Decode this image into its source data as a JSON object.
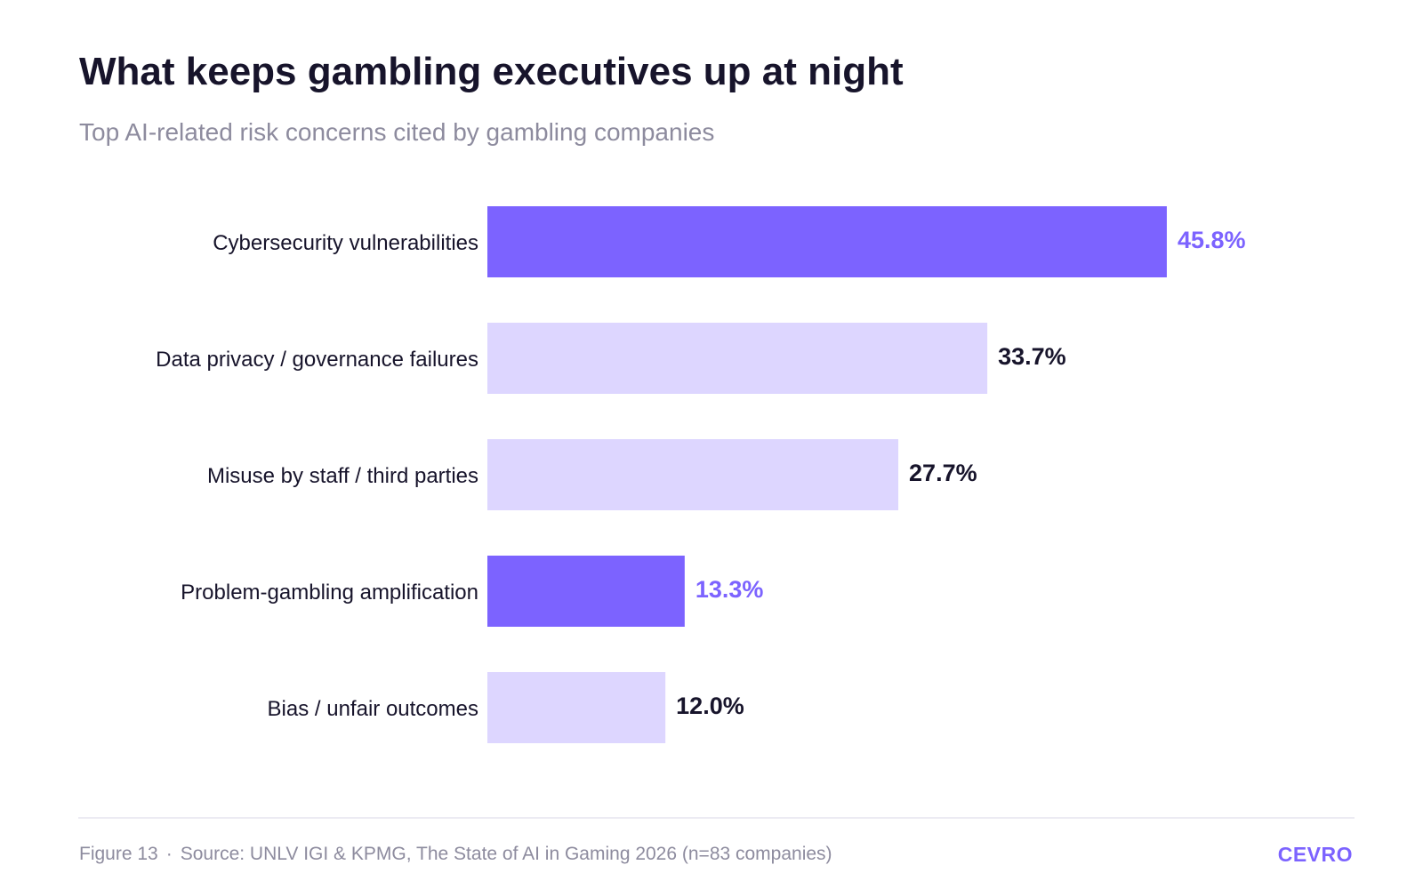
{
  "header": {
    "title": "What keeps gambling executives up at night",
    "subtitle": "Top AI-related risk concerns cited by gambling companies"
  },
  "chart_data": {
    "type": "bar",
    "orientation": "horizontal",
    "title": "What keeps gambling executives up at night",
    "subtitle": "Top AI-related risk concerns cited by gambling companies",
    "categories": [
      "Cybersecurity vulnerabilities",
      "Data privacy / governance failures",
      "Misuse by staff / third parties",
      "Problem-gambling amplification",
      "Bias / unfair outcomes"
    ],
    "values": [
      45.8,
      33.7,
      27.7,
      13.3,
      12.0
    ],
    "value_labels": [
      "45.8%",
      "33.7%",
      "27.7%",
      "13.3%",
      "12.0%"
    ],
    "highlighted": [
      true,
      false,
      false,
      true,
      false
    ],
    "xlabel": "",
    "ylabel": "",
    "grid": false,
    "legend": "none",
    "colors": {
      "highlight_bar": "#7c63ff",
      "normal_bar": "#ddd6ff",
      "highlight_text": "#7c63ff",
      "normal_text": "#17142b"
    }
  },
  "footer": {
    "figure": "Figure 13",
    "separator": "·",
    "source": "Source: UNLV IGI & KPMG, The State of AI in Gaming 2026 (n=83 companies)",
    "brand": "CEVRO"
  }
}
